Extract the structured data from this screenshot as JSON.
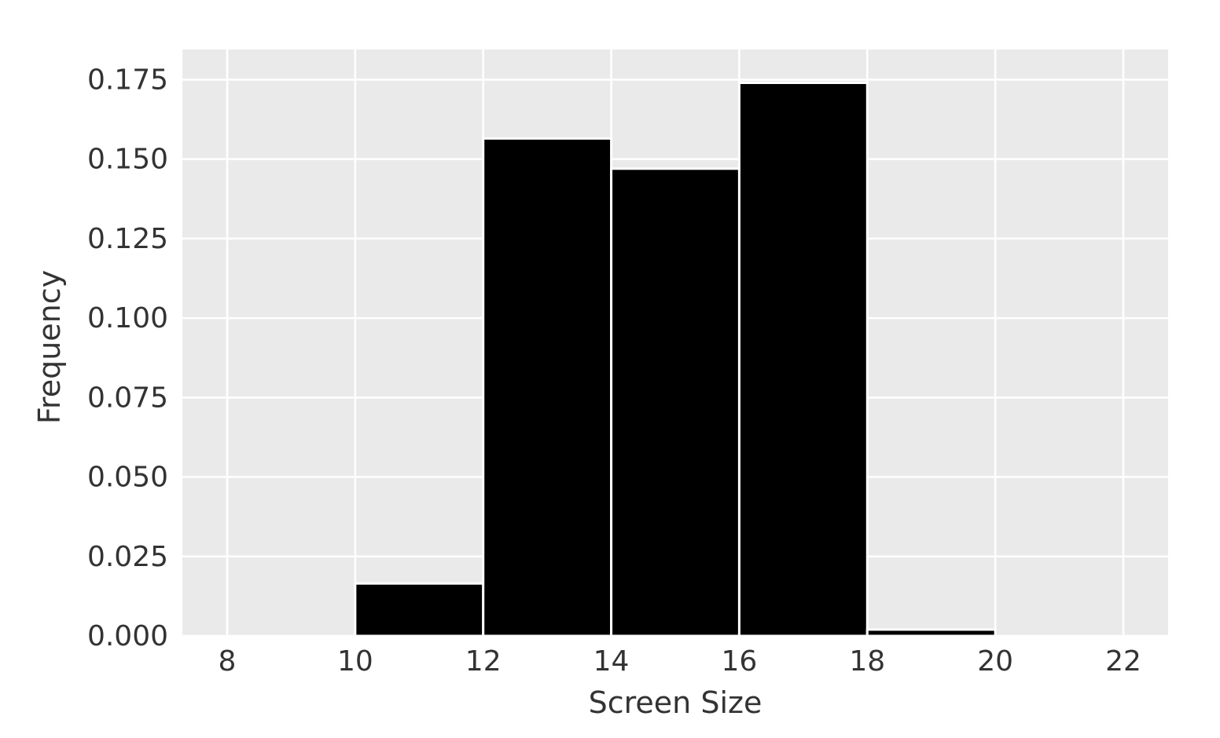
{
  "chart_data": {
    "type": "bar",
    "subtype": "histogram",
    "title": "",
    "xlabel": "Screen Size",
    "ylabel": "Frequency",
    "xlim": [
      7.3,
      22.7
    ],
    "ylim": [
      0,
      0.1845
    ],
    "xticks": [
      8,
      10,
      12,
      14,
      16,
      18,
      20,
      22
    ],
    "yticks": [
      "0.000",
      "0.025",
      "0.050",
      "0.075",
      "0.100",
      "0.125",
      "0.150",
      "0.175"
    ],
    "bins": [
      {
        "x0": 10,
        "x1": 12,
        "value": 0.0165
      },
      {
        "x0": 12,
        "x1": 14,
        "value": 0.1565
      },
      {
        "x0": 14,
        "x1": 16,
        "value": 0.147
      },
      {
        "x0": 16,
        "x1": 18,
        "value": 0.174
      },
      {
        "x0": 18,
        "x1": 20,
        "value": 0.002
      }
    ],
    "grid": true,
    "colors": {
      "bar_fill": "#000000",
      "bar_edge": "#ffffff",
      "plot_background": "#eaeaea",
      "grid": "#ffffff",
      "text": "#333333"
    }
  }
}
